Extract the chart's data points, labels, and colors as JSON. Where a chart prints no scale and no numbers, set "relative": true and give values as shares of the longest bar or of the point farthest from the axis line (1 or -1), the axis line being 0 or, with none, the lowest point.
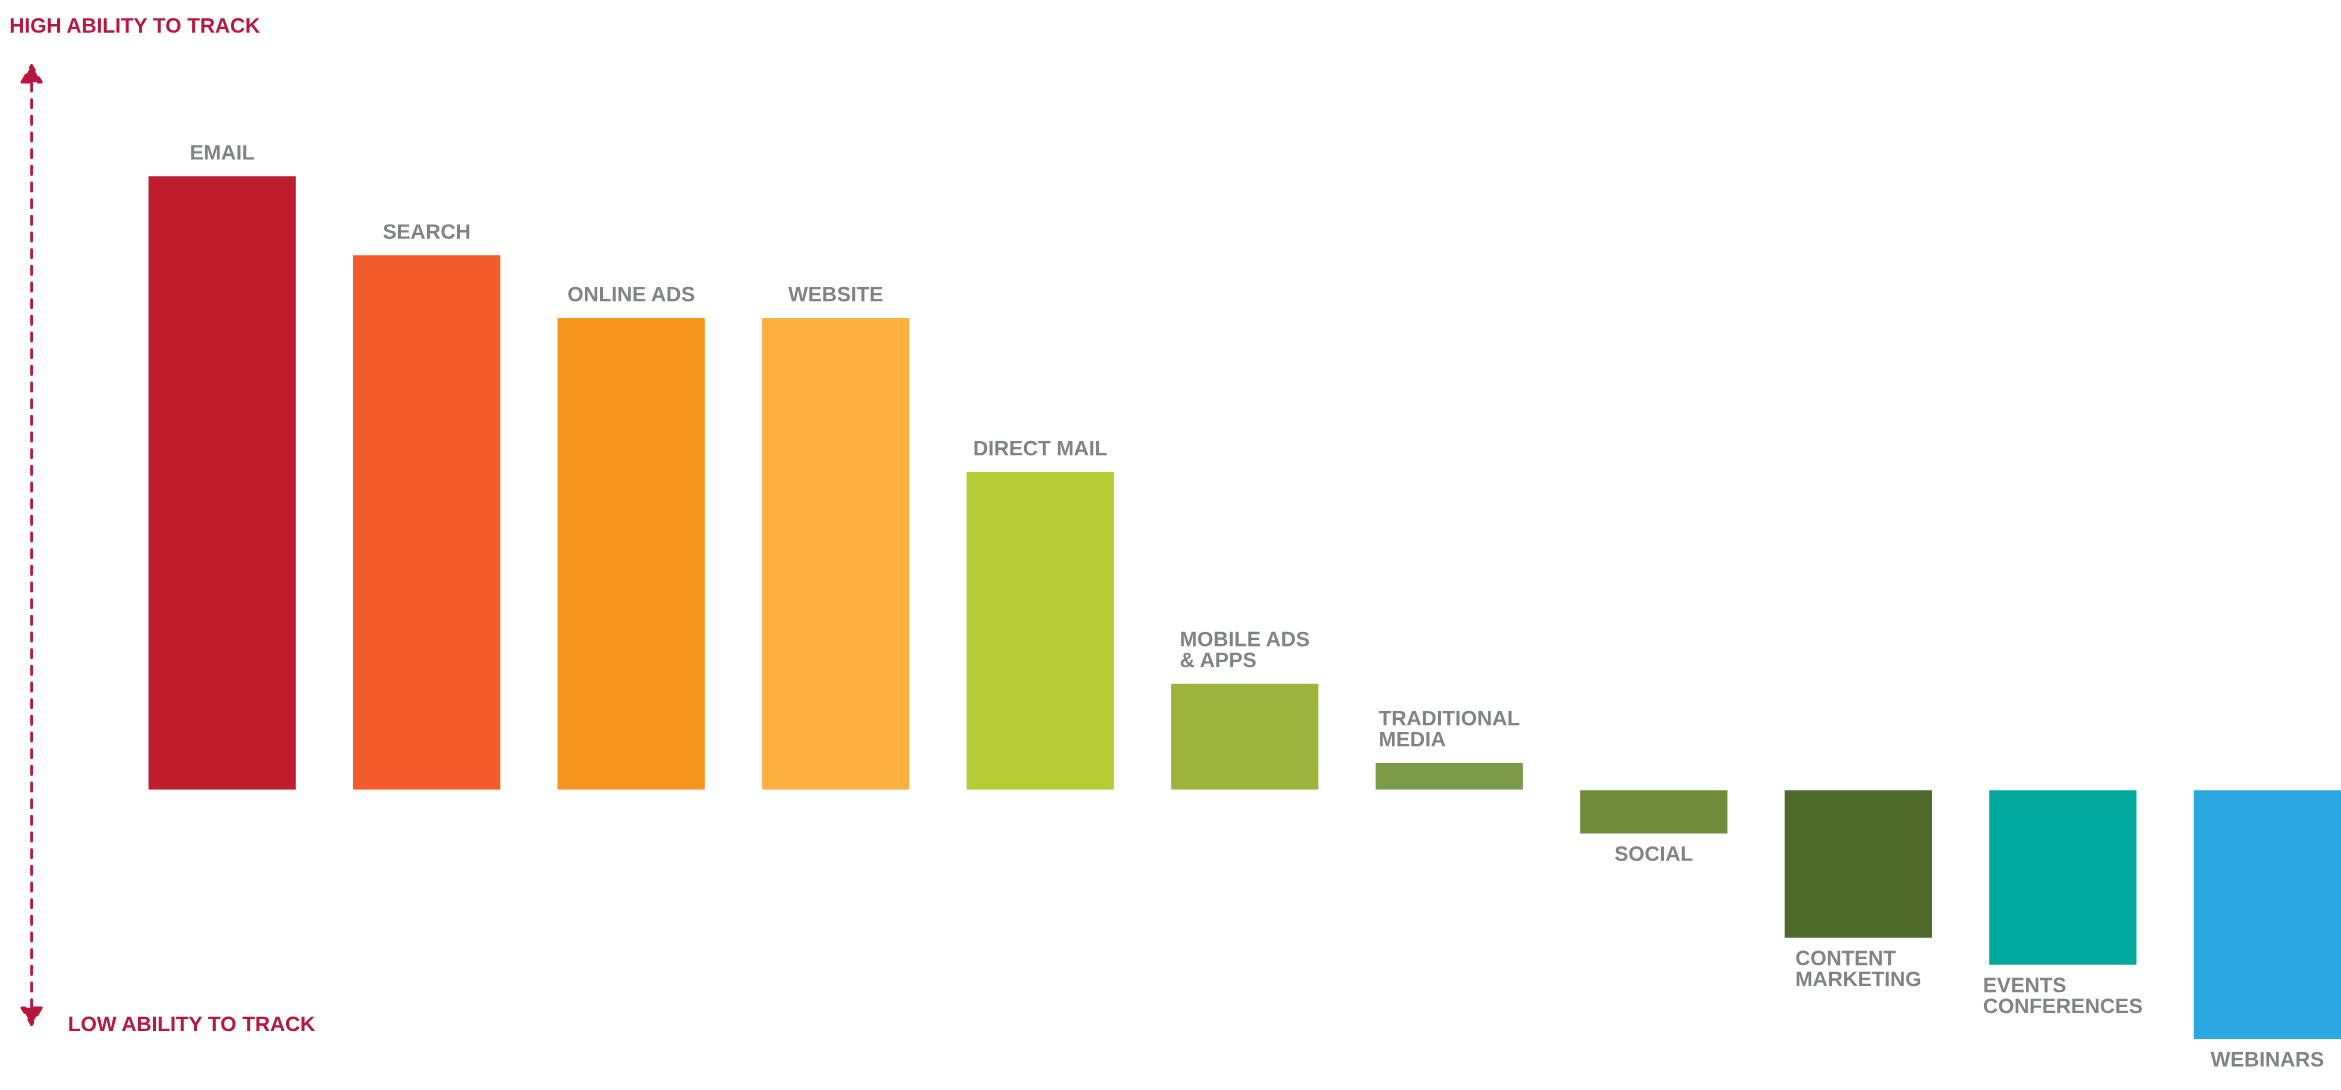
{
  "chart_data": {
    "type": "bar",
    "relative": true,
    "categories": [
      "EMAIL",
      "SEARCH",
      "ONLINE ADS",
      "WEBSITE",
      "DIRECT MAIL",
      "MOBILE ADS\n& APPS",
      "TRADITIONAL\nMEDIA",
      "SOCIAL",
      "CONTENT\nMARKETING",
      "EVENTS\nCONFERENCES",
      "WEBINARS"
    ],
    "values": [
      1.0,
      0.871,
      0.769,
      0.769,
      0.518,
      0.173,
      0.044,
      -0.071,
      -0.241,
      -0.285,
      -0.406
    ],
    "colors": [
      "#be1e2d",
      "#f15a2b",
      "#f7941e",
      "#fbb040",
      "#b5cc34",
      "#9cb33d",
      "#7b9a47",
      "#6f8c3a",
      "#4d6a2b",
      "#00a79d",
      "#29a9e0"
    ],
    "annotations": [
      "HIGH ABILITY TO TRACK",
      "LOW ABILITY TO TRACK"
    ]
  }
}
